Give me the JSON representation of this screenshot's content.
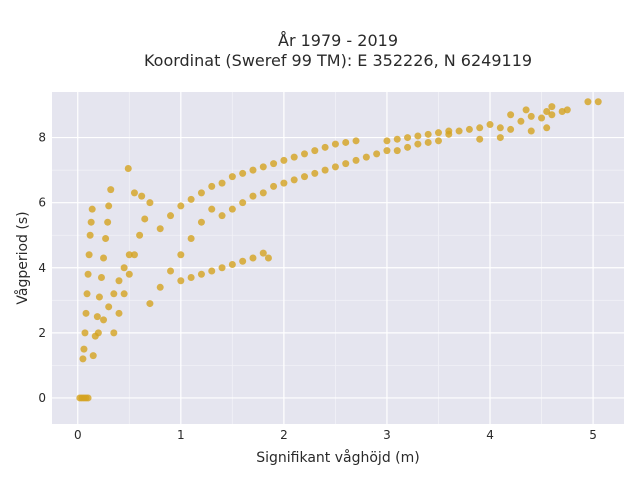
{
  "chart_data": {
    "type": "scatter",
    "title_line1": "År 1979 - 2019",
    "title_line2": "Koordinat (Sweref 99 TM): E 352226, N 6249119",
    "xlabel": "Signifikant våghöjd (m)",
    "ylabel": "Vågperiod (s)",
    "xlim": [
      -0.25,
      5.3
    ],
    "ylim": [
      -0.8,
      9.4
    ],
    "xticks": [
      0,
      1,
      2,
      3,
      4,
      5
    ],
    "yticks": [
      0,
      2,
      4,
      6,
      8
    ],
    "xtick_labels": [
      "0",
      "1",
      "2",
      "3",
      "4",
      "5"
    ],
    "ytick_labels": [
      "0",
      "2",
      "4",
      "6",
      "8"
    ],
    "grid": true,
    "marker_color": "#d4a31f",
    "background_color": "#e5e5ef",
    "series": [
      {
        "points": [
          [
            0.02,
            0.0
          ],
          [
            0.04,
            0.0
          ],
          [
            0.06,
            0.0
          ],
          [
            0.08,
            0.0
          ],
          [
            0.1,
            0.0
          ],
          [
            0.05,
            1.2
          ],
          [
            0.06,
            1.5
          ],
          [
            0.07,
            2.0
          ],
          [
            0.08,
            2.6
          ],
          [
            0.09,
            3.2
          ],
          [
            0.1,
            3.8
          ],
          [
            0.11,
            4.4
          ],
          [
            0.12,
            5.0
          ],
          [
            0.13,
            5.4
          ],
          [
            0.14,
            5.8
          ],
          [
            0.15,
            1.3
          ],
          [
            0.17,
            1.9
          ],
          [
            0.19,
            2.5
          ],
          [
            0.21,
            3.1
          ],
          [
            0.23,
            3.7
          ],
          [
            0.25,
            4.3
          ],
          [
            0.27,
            4.9
          ],
          [
            0.29,
            5.4
          ],
          [
            0.3,
            5.9
          ],
          [
            0.35,
            2.0
          ],
          [
            0.4,
            2.6
          ],
          [
            0.45,
            3.2
          ],
          [
            0.5,
            3.8
          ],
          [
            0.55,
            4.4
          ],
          [
            0.6,
            5.0
          ],
          [
            0.65,
            5.5
          ],
          [
            0.7,
            6.0
          ],
          [
            0.32,
            6.4
          ],
          [
            0.49,
            7.05
          ],
          [
            0.55,
            6.3
          ],
          [
            0.62,
            6.2
          ],
          [
            0.2,
            2.0
          ],
          [
            0.25,
            2.4
          ],
          [
            0.3,
            2.8
          ],
          [
            0.35,
            3.2
          ],
          [
            0.4,
            3.6
          ],
          [
            0.45,
            4.0
          ],
          [
            0.5,
            4.4
          ],
          [
            0.7,
            2.9
          ],
          [
            0.8,
            3.4
          ],
          [
            0.9,
            3.9
          ],
          [
            1.0,
            4.4
          ],
          [
            1.1,
            4.9
          ],
          [
            1.2,
            5.4
          ],
          [
            1.3,
            5.8
          ],
          [
            0.8,
            5.2
          ],
          [
            0.9,
            5.6
          ],
          [
            1.0,
            5.9
          ],
          [
            1.1,
            6.1
          ],
          [
            1.2,
            6.3
          ],
          [
            1.3,
            6.5
          ],
          [
            1.0,
            3.6
          ],
          [
            1.1,
            3.7
          ],
          [
            1.2,
            3.8
          ],
          [
            1.3,
            3.9
          ],
          [
            1.4,
            4.0
          ],
          [
            1.5,
            4.1
          ],
          [
            1.6,
            4.2
          ],
          [
            1.7,
            4.3
          ],
          [
            1.8,
            4.45
          ],
          [
            1.85,
            4.3
          ],
          [
            1.4,
            5.6
          ],
          [
            1.5,
            5.8
          ],
          [
            1.6,
            6.0
          ],
          [
            1.7,
            6.2
          ],
          [
            1.8,
            6.3
          ],
          [
            1.9,
            6.5
          ],
          [
            2.0,
            6.6
          ],
          [
            1.4,
            6.6
          ],
          [
            1.5,
            6.8
          ],
          [
            1.6,
            6.9
          ],
          [
            1.7,
            7.0
          ],
          [
            1.8,
            7.1
          ],
          [
            1.9,
            7.2
          ],
          [
            2.0,
            7.3
          ],
          [
            2.1,
            7.4
          ],
          [
            2.1,
            6.7
          ],
          [
            2.2,
            6.8
          ],
          [
            2.3,
            6.9
          ],
          [
            2.4,
            7.0
          ],
          [
            2.5,
            7.1
          ],
          [
            2.6,
            7.2
          ],
          [
            2.7,
            7.3
          ],
          [
            2.8,
            7.4
          ],
          [
            2.9,
            7.5
          ],
          [
            3.0,
            7.6
          ],
          [
            2.2,
            7.5
          ],
          [
            2.3,
            7.6
          ],
          [
            2.4,
            7.7
          ],
          [
            2.5,
            7.8
          ],
          [
            2.6,
            7.85
          ],
          [
            2.7,
            7.9
          ],
          [
            3.0,
            7.9
          ],
          [
            3.1,
            7.95
          ],
          [
            3.2,
            8.0
          ],
          [
            3.3,
            8.05
          ],
          [
            3.4,
            8.1
          ],
          [
            3.5,
            8.15
          ],
          [
            3.6,
            8.2
          ],
          [
            3.1,
            7.6
          ],
          [
            3.2,
            7.7
          ],
          [
            3.3,
            7.8
          ],
          [
            3.4,
            7.85
          ],
          [
            3.5,
            7.9
          ],
          [
            3.6,
            8.1
          ],
          [
            3.7,
            8.2
          ],
          [
            3.8,
            8.25
          ],
          [
            3.9,
            8.3
          ],
          [
            4.0,
            8.4
          ],
          [
            4.1,
            8.3
          ],
          [
            4.2,
            8.25
          ],
          [
            3.9,
            7.95
          ],
          [
            4.1,
            8.0
          ],
          [
            4.4,
            8.2
          ],
          [
            4.2,
            8.7
          ],
          [
            4.3,
            8.5
          ],
          [
            4.4,
            8.65
          ],
          [
            4.5,
            8.6
          ],
          [
            4.55,
            8.8
          ],
          [
            4.6,
            8.7
          ],
          [
            4.7,
            8.8
          ],
          [
            4.75,
            8.85
          ],
          [
            4.55,
            8.3
          ],
          [
            4.35,
            8.85
          ],
          [
            4.6,
            8.95
          ],
          [
            4.95,
            9.1
          ],
          [
            5.05,
            9.1
          ]
        ]
      }
    ]
  }
}
